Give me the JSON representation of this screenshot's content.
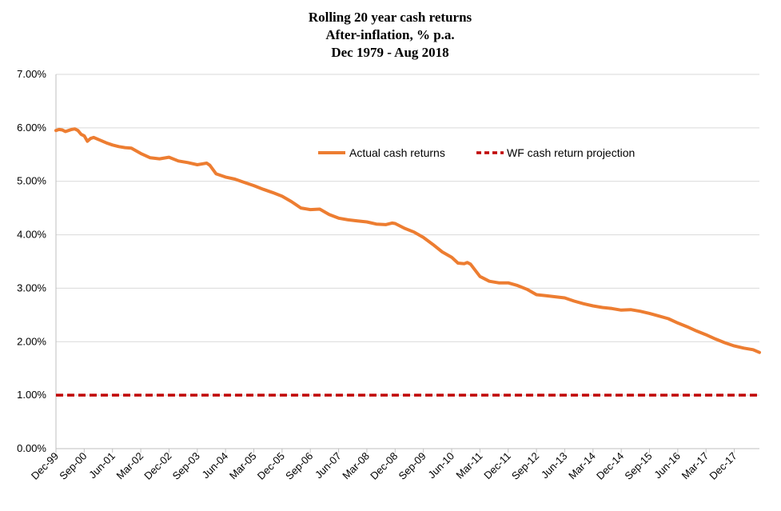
{
  "chart_data": {
    "type": "line",
    "title_lines": [
      "Rolling 20 year cash returns",
      "After-inflation, % p.a.",
      "Dec 1979 - Aug 2018"
    ],
    "xlabel": "",
    "ylabel": "",
    "y_ticks": [
      "0.00%",
      "1.00%",
      "2.00%",
      "3.00%",
      "4.00%",
      "5.00%",
      "6.00%",
      "7.00%"
    ],
    "y_tick_values": [
      0,
      1,
      2,
      3,
      4,
      5,
      6,
      7
    ],
    "ylim": [
      0,
      7
    ],
    "grid": true,
    "legend_position": "top-right",
    "x_ticks": [
      "Dec-99",
      "Sep-00",
      "Jun-01",
      "Mar-02",
      "Dec-02",
      "Sep-03",
      "Jun-04",
      "Mar-05",
      "Dec-05",
      "Sep-06",
      "Jun-07",
      "Mar-08",
      "Dec-08",
      "Sep-09",
      "Jun-10",
      "Mar-11",
      "Dec-11",
      "Sep-12",
      "Jun-13",
      "Mar-14",
      "Dec-14",
      "Sep-15",
      "Jun-16",
      "Mar-17",
      "Dec-17"
    ],
    "x_tick_values": [
      "1999-12",
      "2000-09",
      "2001-06",
      "2002-03",
      "2002-12",
      "2003-09",
      "2004-06",
      "2005-03",
      "2005-12",
      "2006-09",
      "2007-06",
      "2008-03",
      "2008-12",
      "2009-09",
      "2010-06",
      "2011-03",
      "2011-12",
      "2012-09",
      "2013-06",
      "2014-03",
      "2014-12",
      "2015-09",
      "2016-06",
      "2017-03",
      "2017-12"
    ],
    "xlim": [
      "1999-12",
      "2018-08"
    ],
    "series": [
      {
        "name": "Actual cash returns",
        "color": "#ED7D31",
        "style": "solid",
        "x": [
          "1999-12",
          "2000-01",
          "2000-02",
          "2000-03",
          "2000-04",
          "2000-05",
          "2000-06",
          "2000-07",
          "2000-08",
          "2000-09",
          "2000-10",
          "2000-11",
          "2000-12",
          "2001-02",
          "2001-04",
          "2001-06",
          "2001-08",
          "2001-10",
          "2001-12",
          "2002-03",
          "2002-06",
          "2002-09",
          "2002-12",
          "2003-03",
          "2003-06",
          "2003-09",
          "2003-12",
          "2004-01",
          "2004-03",
          "2004-06",
          "2004-09",
          "2004-12",
          "2005-03",
          "2005-06",
          "2005-09",
          "2005-12",
          "2006-03",
          "2006-06",
          "2006-09",
          "2006-12",
          "2007-03",
          "2007-06",
          "2007-09",
          "2007-12",
          "2008-03",
          "2008-06",
          "2008-09",
          "2008-11",
          "2008-12",
          "2009-03",
          "2009-06",
          "2009-09",
          "2009-12",
          "2010-03",
          "2010-06",
          "2010-08",
          "2010-10",
          "2010-11",
          "2010-12",
          "2011-03",
          "2011-06",
          "2011-09",
          "2011-12",
          "2012-03",
          "2012-06",
          "2012-09",
          "2012-12",
          "2013-03",
          "2013-06",
          "2013-09",
          "2013-12",
          "2014-03",
          "2014-06",
          "2014-09",
          "2014-12",
          "2015-03",
          "2015-06",
          "2015-09",
          "2015-12",
          "2016-03",
          "2016-06",
          "2016-09",
          "2016-12",
          "2017-03",
          "2017-06",
          "2017-09",
          "2017-12",
          "2018-03",
          "2018-06",
          "2018-08"
        ],
        "values": [
          5.95,
          5.97,
          5.96,
          5.93,
          5.95,
          5.97,
          5.98,
          5.95,
          5.88,
          5.85,
          5.75,
          5.8,
          5.82,
          5.77,
          5.72,
          5.68,
          5.65,
          5.63,
          5.62,
          5.52,
          5.44,
          5.42,
          5.45,
          5.38,
          5.35,
          5.31,
          5.34,
          5.3,
          5.14,
          5.08,
          5.04,
          4.98,
          4.92,
          4.85,
          4.79,
          4.72,
          4.62,
          4.5,
          4.47,
          4.48,
          4.38,
          4.31,
          4.28,
          4.26,
          4.24,
          4.2,
          4.19,
          4.22,
          4.21,
          4.12,
          4.05,
          3.95,
          3.82,
          3.68,
          3.58,
          3.47,
          3.46,
          3.48,
          3.45,
          3.22,
          3.13,
          3.1,
          3.1,
          3.05,
          2.98,
          2.88,
          2.86,
          2.84,
          2.82,
          2.76,
          2.71,
          2.67,
          2.64,
          2.62,
          2.59,
          2.6,
          2.57,
          2.53,
          2.48,
          2.43,
          2.35,
          2.28,
          2.2,
          2.13,
          2.05,
          1.98,
          1.92,
          1.88,
          1.85,
          1.8
        ]
      },
      {
        "name": "WF cash return projection",
        "color": "#C00000",
        "style": "dashed",
        "x": [
          "1999-12",
          "2018-08"
        ],
        "values": [
          1.0,
          1.0
        ]
      }
    ]
  }
}
